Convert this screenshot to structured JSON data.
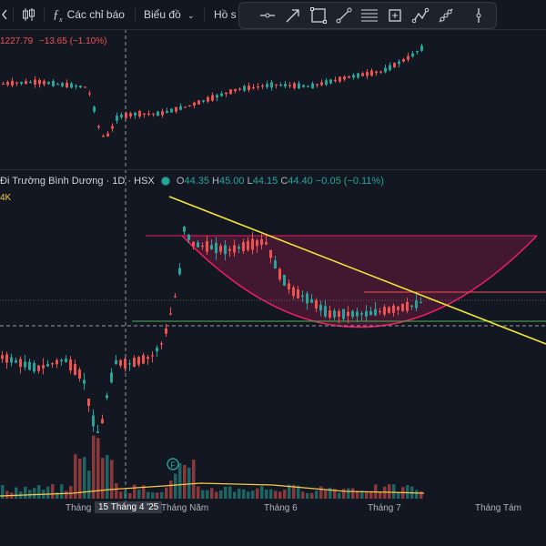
{
  "toolbar": {
    "indicators_label": "Các chỉ báo",
    "chart_type_label": "Biểu đồ",
    "profile_label": "Hồ s"
  },
  "drawing_tools": [
    "horizontal-line-icon",
    "arrow-tool-icon",
    "rectangle-icon",
    "trend-line-icon",
    "fib-retracement-icon",
    "plus-box-icon",
    "path-tool-icon",
    "scatter-tool-icon",
    "vertical-line-icon"
  ],
  "index_panel": {
    "value": "1227.79",
    "change": "−13.65 (−1.10%)"
  },
  "stock_panel": {
    "name": "Đi Trường Bình Dương · 1D · HSX",
    "open_label": "O",
    "open": "44.35",
    "high_label": "H",
    "high": "45.00",
    "low_label": "L",
    "low": "44.15",
    "close_label": "C",
    "close": "44.40",
    "change": "−0.05 (−0.11%)",
    "volume_label": "4K"
  },
  "x_axis": {
    "label_1": "Tháng",
    "crosshair_date": "15 Tháng 4 '25",
    "label_2": "Tháng Năm",
    "label_3": "Tháng 6",
    "label_4": "Tháng 7",
    "label_5": "Tháng Tám"
  },
  "marker": "F",
  "colors": {
    "up": "#26a69a",
    "down": "#ef5350",
    "trendline": "#f5e536",
    "cup": "#e91e63",
    "background": "#131722"
  }
}
